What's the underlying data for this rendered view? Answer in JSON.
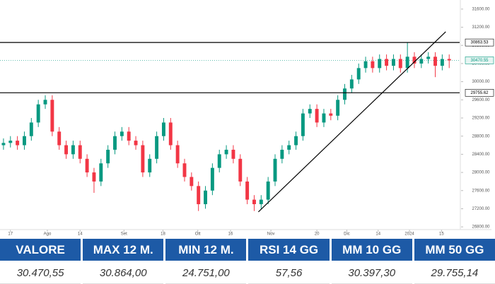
{
  "chart_data": {
    "type": "candlestick",
    "open": [
      28600,
      28650,
      28700,
      28600,
      28800,
      29100,
      29500,
      29600,
      28900,
      28600,
      28400,
      28600,
      28300,
      28000,
      27800,
      28200,
      28500,
      28800,
      28900,
      28700,
      28600,
      28000,
      28300,
      28800,
      29100,
      28600,
      28200,
      27900,
      27700,
      27300,
      27600,
      28100,
      28400,
      28500,
      28300,
      27800,
      27400,
      27300,
      27400,
      27800,
      28300,
      28500,
      28600,
      28800,
      29300,
      29400,
      29100,
      29300,
      29250,
      29600,
      29850,
      30050,
      30300,
      30450,
      30300,
      30500,
      30350,
      30500,
      30300,
      30550,
      30400,
      30500,
      30550,
      30350,
      30500
    ],
    "high": [
      28750,
      28800,
      28800,
      28900,
      29200,
      29600,
      29700,
      29700,
      29000,
      28700,
      28700,
      28700,
      28400,
      28100,
      28300,
      28600,
      28900,
      29000,
      29000,
      28800,
      28700,
      28400,
      28900,
      29200,
      29200,
      28700,
      28300,
      28000,
      27800,
      27700,
      28200,
      28500,
      28600,
      28600,
      28400,
      27900,
      27500,
      27500,
      27900,
      28400,
      28600,
      28700,
      28900,
      29400,
      29500,
      29500,
      29400,
      29400,
      29700,
      29950,
      30150,
      30400,
      30550,
      30550,
      30600,
      30600,
      30600,
      30600,
      30864,
      30650,
      30600,
      30650,
      30650,
      30600,
      30600
    ],
    "low": [
      28500,
      28550,
      28500,
      28500,
      28700,
      29000,
      29400,
      28800,
      28500,
      28300,
      28300,
      28200,
      27900,
      27550,
      27700,
      28100,
      28400,
      28700,
      28600,
      28500,
      27900,
      27900,
      28200,
      28700,
      28500,
      28100,
      27800,
      27600,
      27150,
      27200,
      27500,
      28000,
      28300,
      28200,
      27700,
      27300,
      27150,
      27200,
      27300,
      27700,
      28200,
      28400,
      28500,
      28700,
      29200,
      29000,
      29000,
      29150,
      29150,
      29500,
      29750,
      29950,
      30200,
      30200,
      30200,
      30250,
      30250,
      30200,
      30200,
      30300,
      30300,
      30400,
      30100,
      30250,
      30300
    ],
    "close": [
      28650,
      28700,
      28600,
      28800,
      29100,
      29500,
      29600,
      28900,
      28600,
      28400,
      28600,
      28300,
      28000,
      27800,
      28200,
      28500,
      28800,
      28900,
      28700,
      28600,
      28000,
      28300,
      28800,
      29100,
      28600,
      28200,
      27900,
      27700,
      27300,
      27600,
      28100,
      28400,
      28500,
      28300,
      27800,
      27400,
      27300,
      27400,
      27800,
      28300,
      28500,
      28600,
      28800,
      29300,
      29400,
      29100,
      29300,
      29250,
      29600,
      29850,
      30050,
      30300,
      30450,
      30300,
      30500,
      30350,
      30500,
      30300,
      30550,
      30400,
      30500,
      30550,
      30350,
      30500,
      30470
    ],
    "up_color": "#089981",
    "down_color": "#f23645",
    "xlim": [
      -0.5,
      65.5
    ],
    "xticks": [
      {
        "value": 1.0,
        "label": "17"
      },
      {
        "value": 6.3,
        "label": "Ago"
      },
      {
        "value": 11.0,
        "label": "14"
      },
      {
        "value": 17.3,
        "label": "Set"
      },
      {
        "value": 22.9,
        "label": "18"
      },
      {
        "value": 27.9,
        "label": "Ott"
      },
      {
        "value": 32.6,
        "label": "16"
      },
      {
        "value": 38.4,
        "label": "Nov"
      },
      {
        "value": 45.0,
        "label": "20"
      },
      {
        "value": 49.3,
        "label": "Dic"
      },
      {
        "value": 53.8,
        "label": "14"
      },
      {
        "value": 58.3,
        "label": "2024"
      },
      {
        "value": 62.9,
        "label": "15"
      }
    ],
    "ylim": [
      26740,
      31800
    ],
    "yticks": [
      {
        "value": 26800,
        "label": "26800.00"
      },
      {
        "value": 27200,
        "label": "27200.00"
      },
      {
        "value": 27600,
        "label": "27600.00"
      },
      {
        "value": 28000,
        "label": "28000.00"
      },
      {
        "value": 28400,
        "label": "28400.00"
      },
      {
        "value": 28800,
        "label": "28800.00"
      },
      {
        "value": 29200,
        "label": "29200.00"
      },
      {
        "value": 29600,
        "label": "29600.00"
      },
      {
        "value": 30000,
        "label": "30000.00"
      },
      {
        "value": 30400,
        "label": "30400.00"
      },
      {
        "value": 30800,
        "label": "30800.00"
      },
      {
        "value": 31200,
        "label": "31200.00"
      },
      {
        "value": 31600,
        "label": "31600.00"
      }
    ],
    "levels": [
      {
        "value": 30863.53,
        "label": "30863.53",
        "color": "#000000"
      },
      {
        "value": 29755.62,
        "label": "29755.62",
        "color": "#000000"
      }
    ],
    "last_price": {
      "value": 30470.55,
      "label": "30470.55",
      "color": "#089981"
    },
    "trendline": {
      "x": [
        36.6,
        63.5
      ],
      "y": [
        27130,
        31100
      ],
      "color": "#000000"
    }
  },
  "table": {
    "headers": [
      "VALORE",
      "MAX 12 M.",
      "MIN 12 M.",
      "RSI 14 GG",
      "MM 10 GG",
      "MM 50 GG"
    ],
    "values": [
      "30.470,55",
      "30.864,00",
      "24.751,00",
      "57,56",
      "30.397,30",
      "29.755,14"
    ]
  }
}
